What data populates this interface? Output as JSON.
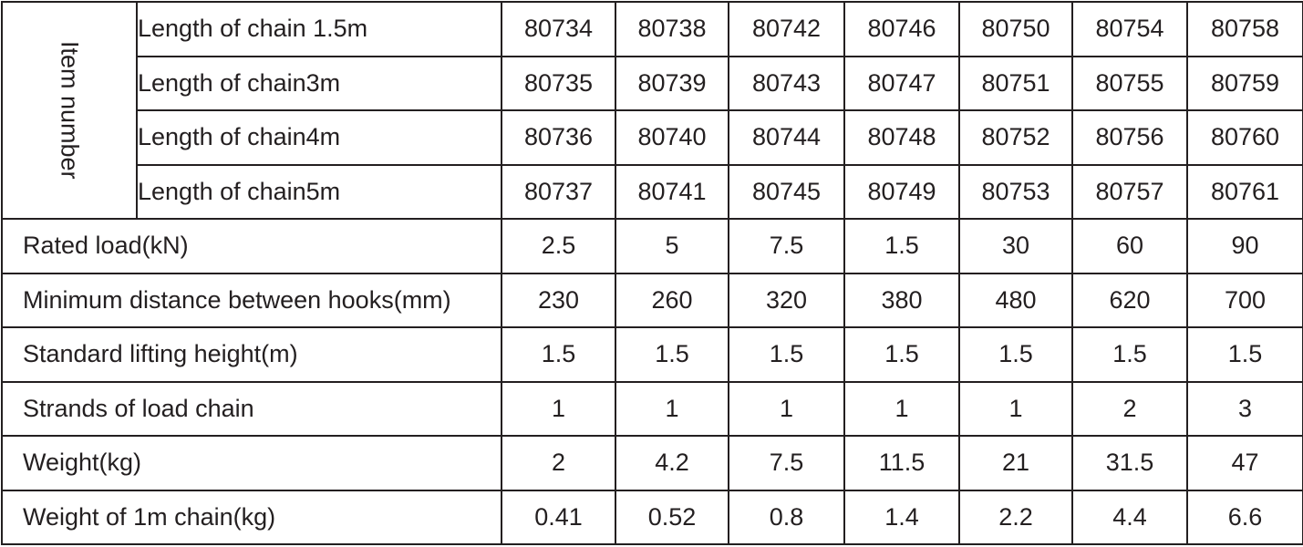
{
  "table": {
    "item_number_label": "Item number",
    "item_rows": [
      {
        "label": "Length of chain 1.5m",
        "values": [
          "80734",
          "80738",
          "80742",
          "80746",
          "80750",
          "80754",
          "80758"
        ]
      },
      {
        "label": "Length of chain3m",
        "values": [
          "80735",
          "80739",
          "80743",
          "80747",
          "80751",
          "80755",
          "80759"
        ]
      },
      {
        "label": "Length of chain4m",
        "values": [
          "80736",
          "80740",
          "80744",
          "80748",
          "80752",
          "80756",
          "80760"
        ]
      },
      {
        "label": "Length of chain5m",
        "values": [
          "80737",
          "80741",
          "80745",
          "80749",
          "80753",
          "80757",
          "80761"
        ]
      }
    ],
    "spec_rows": [
      {
        "label": "Rated load(kN)",
        "values": [
          "2.5",
          "5",
          "7.5",
          "1.5",
          "30",
          "60",
          "90"
        ]
      },
      {
        "label": "Minimum distance between hooks(mm)",
        "values": [
          "230",
          "260",
          "320",
          "380",
          "480",
          "620",
          "700"
        ]
      },
      {
        "label": "Standard lifting height(m)",
        "values": [
          "1.5",
          "1.5",
          "1.5",
          "1.5",
          "1.5",
          "1.5",
          "1.5"
        ]
      },
      {
        "label": "Strands of load chain",
        "values": [
          "1",
          "1",
          "1",
          "1",
          "1",
          "2",
          "3"
        ]
      },
      {
        "label": "Weight(kg)",
        "values": [
          "2",
          "4.2",
          "7.5",
          "11.5",
          "21",
          "31.5",
          "47"
        ]
      },
      {
        "label": "Weight of 1m chain(kg)",
        "values": [
          "0.41",
          "0.52",
          "0.8",
          "1.4",
          "2.2",
          "4.4",
          "6.6"
        ]
      }
    ]
  }
}
